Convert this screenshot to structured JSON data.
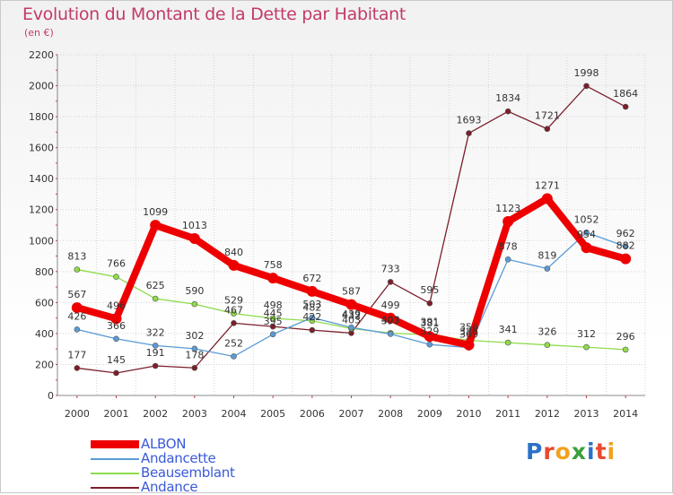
{
  "chart_data": {
    "type": "line",
    "title": "Evolution du Montant de la Dette par Habitant",
    "subtitle": "(en €)",
    "x": [
      "2000",
      "2001",
      "2002",
      "2003",
      "2004",
      "2005",
      "2006",
      "2007",
      "2008",
      "2009",
      "2010",
      "2011",
      "2012",
      "2013",
      "2014"
    ],
    "ylim": [
      0,
      2200
    ],
    "yticks": [
      0,
      200,
      400,
      600,
      800,
      1000,
      1200,
      1400,
      1600,
      1800,
      2000,
      2200
    ],
    "grid": true,
    "legend_position": "bottom-left",
    "series": [
      {
        "name": "ALBON",
        "color": "#ee0000",
        "values": [
          567,
          496,
          1099,
          1013,
          840,
          758,
          672,
          587,
          499,
          381,
          326,
          1123,
          1271,
          954,
          882
        ]
      },
      {
        "name": "Andancette",
        "color": "#5b9bd5",
        "values": [
          426,
          366,
          322,
          302,
          252,
          395,
          503,
          439,
          397,
          329,
          309,
          878,
          819,
          1052,
          962
        ]
      },
      {
        "name": "Beausemblant",
        "color": "#8edc4a",
        "values": [
          813,
          766,
          625,
          590,
          529,
          498,
          482,
          432,
          403,
          391,
          356,
          341,
          326,
          312,
          296
        ]
      },
      {
        "name": "Andance",
        "color": "#7a1f2a",
        "values": [
          177,
          145,
          191,
          178,
          467,
          445,
          422,
          403,
          733,
          595,
          1693,
          1834,
          1721,
          1998,
          1864
        ]
      }
    ]
  },
  "logo": {
    "letters": [
      "P",
      "r",
      "o",
      "x",
      "i",
      "t",
      "i"
    ]
  }
}
